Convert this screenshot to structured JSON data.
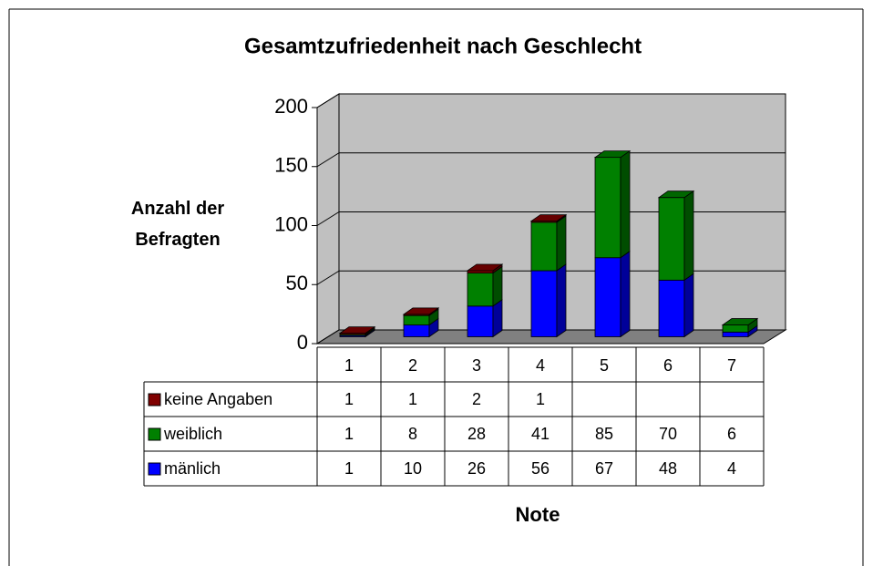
{
  "chart_data": {
    "type": "bar3d_stacked",
    "title": "Gesamtzufriedenheit nach Geschlecht",
    "y_label": "Anzahl der Befragten",
    "x_label": "Note",
    "categories": [
      "1",
      "2",
      "3",
      "4",
      "5",
      "6",
      "7"
    ],
    "series": [
      {
        "name": "mänlich",
        "color": "#0000ff",
        "values": [
          1,
          10,
          26,
          56,
          67,
          48,
          4
        ]
      },
      {
        "name": "weiblich",
        "color": "#008000",
        "values": [
          1,
          8,
          28,
          41,
          85,
          70,
          6
        ]
      },
      {
        "name": "keine Angaben",
        "color": "#800000",
        "values": [
          1,
          1,
          2,
          1,
          null,
          null,
          null
        ]
      }
    ],
    "ylim": [
      0,
      200
    ],
    "yticks": [
      0,
      50,
      100,
      150,
      200
    ],
    "grid": true,
    "data_table": true
  }
}
